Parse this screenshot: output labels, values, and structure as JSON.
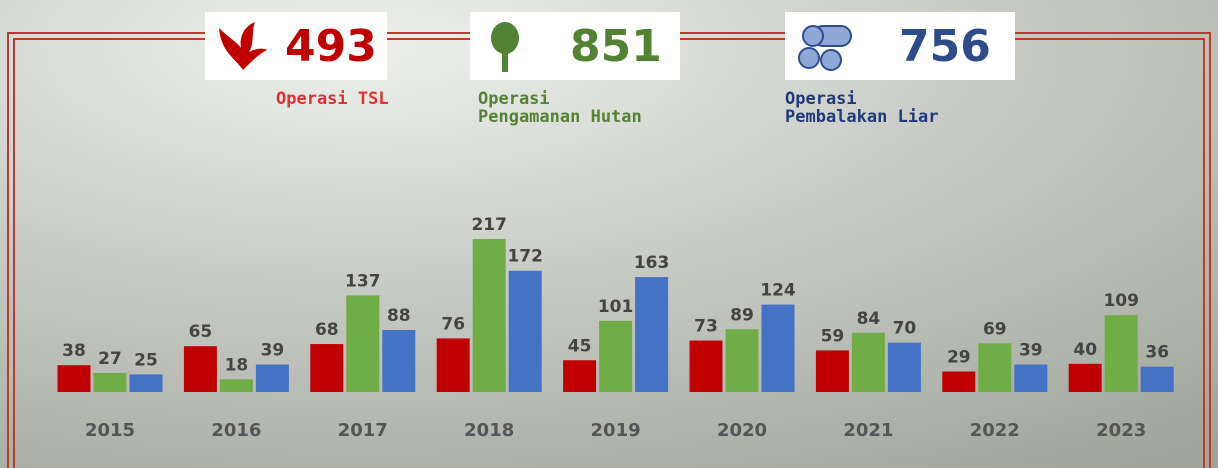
{
  "chart_data": {
    "type": "bar",
    "categories": [
      "2015",
      "2016",
      "2017",
      "2018",
      "2019",
      "2020",
      "2021",
      "2022",
      "2023"
    ],
    "series": [
      {
        "name": "Operasi TSL",
        "color": "#c00000",
        "total": 493,
        "values": [
          38,
          65,
          68,
          76,
          45,
          73,
          59,
          29,
          40
        ]
      },
      {
        "name": "Operasi Pengamanan Hutan",
        "color": "#70ad47",
        "total": 851,
        "values": [
          27,
          18,
          137,
          217,
          101,
          89,
          84,
          69,
          109
        ]
      },
      {
        "name": "Operasi Pembalakan Liar",
        "color": "#4472c4",
        "total": 756,
        "values": [
          25,
          39,
          88,
          172,
          163,
          124,
          70,
          39,
          36
        ]
      }
    ]
  }
}
